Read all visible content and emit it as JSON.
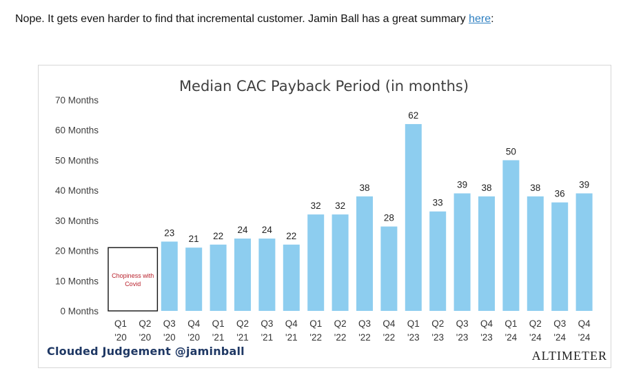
{
  "intro": {
    "text_before": "Nope.  It gets even harder to find that incremental customer.  Jamin Ball has a great summary ",
    "link_text": "here",
    "text_after": ":"
  },
  "footer": {
    "credit": "Clouded Judgement @jaminball",
    "brand": "Altimeter"
  },
  "colors": {
    "bar": "#8DCDEF",
    "annotation_text": "#b8202b",
    "credit": "#1f3864"
  },
  "chart_data": {
    "type": "bar",
    "title": "Median CAC Payback Period (in months)",
    "xlabel": "",
    "ylabel": "",
    "ylim": [
      0,
      70
    ],
    "yticks": [
      {
        "value": 0,
        "label": "0 Months"
      },
      {
        "value": 10,
        "label": "10 Months"
      },
      {
        "value": 20,
        "label": "20 Months"
      },
      {
        "value": 30,
        "label": "30 Months"
      },
      {
        "value": 40,
        "label": "40 Months"
      },
      {
        "value": 50,
        "label": "50 Months"
      },
      {
        "value": 60,
        "label": "60 Months"
      },
      {
        "value": 70,
        "label": "70 Months"
      }
    ],
    "grid": false,
    "categories": [
      {
        "quarter": "Q1",
        "year": "'20"
      },
      {
        "quarter": "Q2",
        "year": "'20"
      },
      {
        "quarter": "Q3",
        "year": "'20"
      },
      {
        "quarter": "Q4",
        "year": "'20"
      },
      {
        "quarter": "Q1",
        "year": "'21"
      },
      {
        "quarter": "Q2",
        "year": "'21"
      },
      {
        "quarter": "Q3",
        "year": "'21"
      },
      {
        "quarter": "Q4",
        "year": "'21"
      },
      {
        "quarter": "Q1",
        "year": "'22"
      },
      {
        "quarter": "Q2",
        "year": "'22"
      },
      {
        "quarter": "Q3",
        "year": "'22"
      },
      {
        "quarter": "Q4",
        "year": "'22"
      },
      {
        "quarter": "Q1",
        "year": "'23"
      },
      {
        "quarter": "Q2",
        "year": "'23"
      },
      {
        "quarter": "Q3",
        "year": "'23"
      },
      {
        "quarter": "Q4",
        "year": "'23"
      },
      {
        "quarter": "Q1",
        "year": "'24"
      },
      {
        "quarter": "Q2",
        "year": "'24"
      },
      {
        "quarter": "Q3",
        "year": "'24"
      },
      {
        "quarter": "Q4",
        "year": "'24"
      }
    ],
    "values": [
      null,
      null,
      23,
      21,
      22,
      24,
      24,
      22,
      32,
      32,
      38,
      28,
      62,
      33,
      39,
      38,
      50,
      38,
      36,
      39
    ],
    "annotation": {
      "text_line1": "Chopiness with",
      "text_line2": "Covid",
      "covers_categories": [
        0,
        1
      ]
    }
  }
}
